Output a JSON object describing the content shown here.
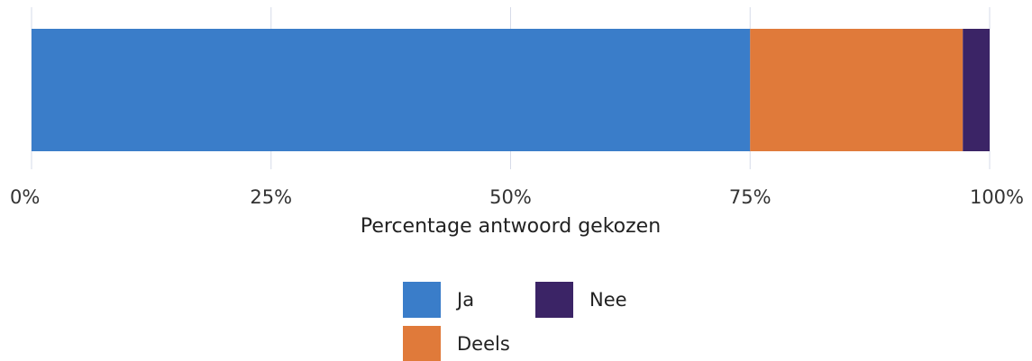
{
  "chart_data": {
    "type": "bar",
    "orientation": "horizontal",
    "stacked": true,
    "xlabel": "Percentage antwoord gekozen",
    "xlim": [
      0,
      100
    ],
    "ticks": [
      "0%",
      "25%",
      "50%",
      "75%",
      "100%"
    ],
    "tick_values": [
      0,
      25,
      50,
      75,
      100
    ],
    "grid": true,
    "legend_position": "bottom",
    "series": [
      {
        "name": "Ja",
        "value": 75,
        "color": "#3a7dc9"
      },
      {
        "name": "Deels",
        "value": 22.2,
        "color": "#e07a3a"
      },
      {
        "name": "Nee",
        "value": 2.8,
        "color": "#3b2466"
      }
    ]
  }
}
